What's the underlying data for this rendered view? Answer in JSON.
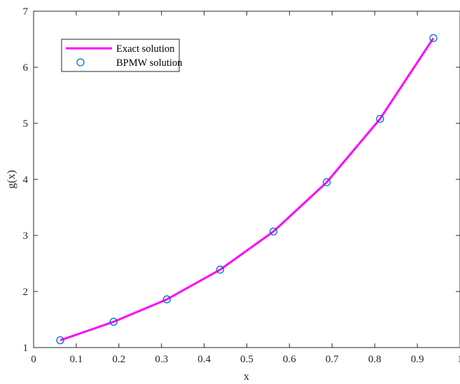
{
  "chart_data": {
    "type": "line",
    "xlabel": "x",
    "ylabel": "g(x)",
    "xlim": [
      0,
      1
    ],
    "ylim": [
      1,
      7
    ],
    "x_ticks": [
      "0",
      "0.1",
      "0.2",
      "0.3",
      "0.4",
      "0.5",
      "0.6",
      "0.7",
      "0.8",
      "0.9",
      "1"
    ],
    "y_ticks": [
      "1",
      "2",
      "3",
      "4",
      "5",
      "6",
      "7"
    ],
    "grid": false,
    "legend_position": "top-left",
    "series": [
      {
        "name": "Exact solution",
        "style": "line",
        "color": "#ff00ff",
        "x": [
          0.0625,
          0.1875,
          0.3125,
          0.4375,
          0.5625,
          0.6875,
          0.8125,
          0.9375
        ],
        "y": [
          1.13,
          1.46,
          1.86,
          2.39,
          3.07,
          3.95,
          5.08,
          6.52
        ]
      },
      {
        "name": "BPMW solution",
        "style": "marker-circle",
        "color": "#0072bd",
        "x": [
          0.0625,
          0.1875,
          0.3125,
          0.4375,
          0.5625,
          0.6875,
          0.8125,
          0.9375
        ],
        "y": [
          1.13,
          1.46,
          1.86,
          2.39,
          3.07,
          3.95,
          5.08,
          6.52
        ]
      }
    ]
  }
}
